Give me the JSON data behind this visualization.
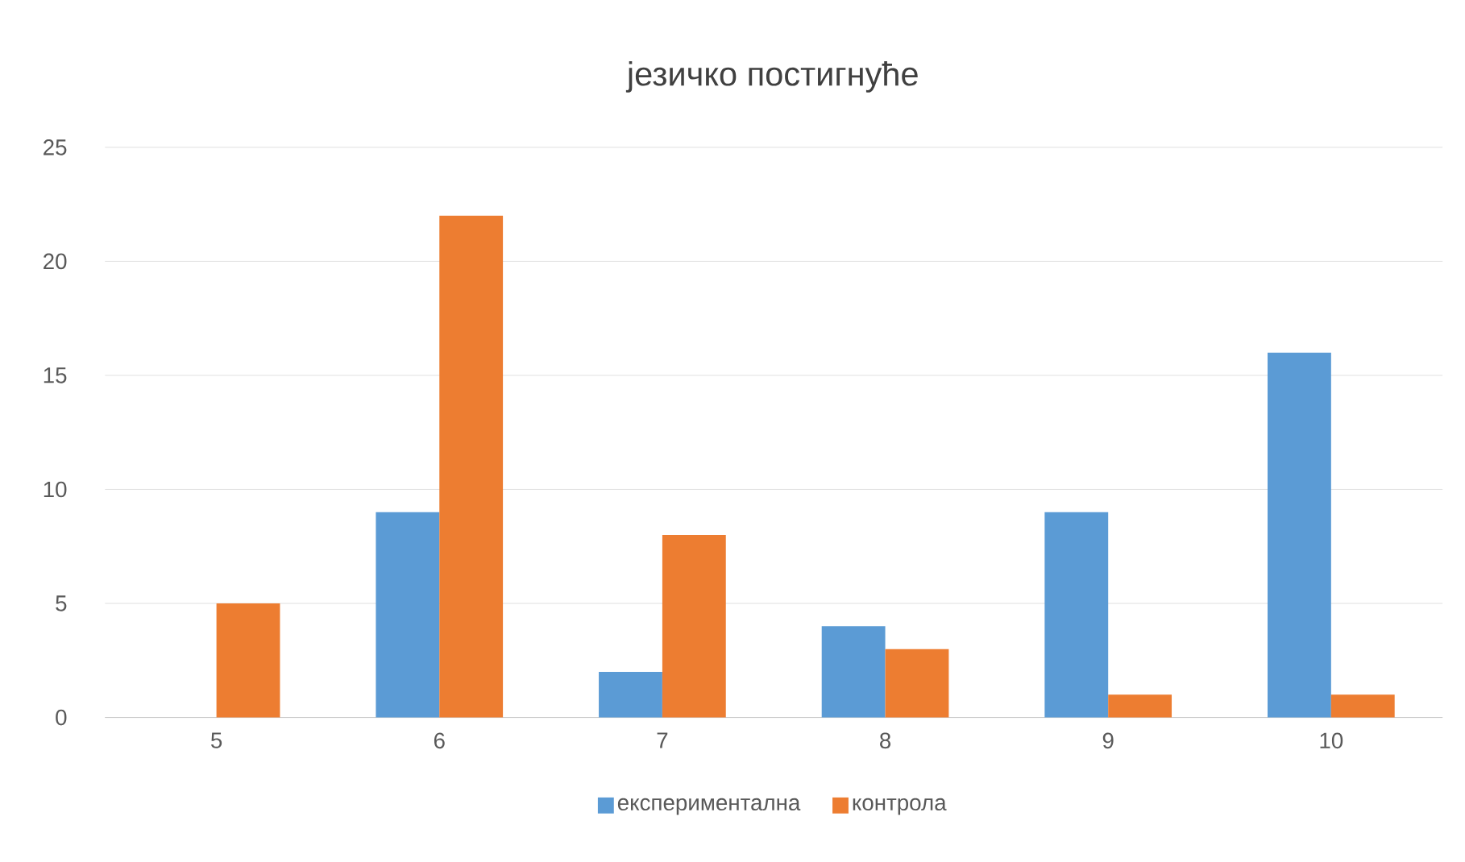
{
  "chart_data": {
    "type": "bar",
    "title": "језичко постигнуће",
    "categories": [
      "5",
      "6",
      "7",
      "8",
      "9",
      "10"
    ],
    "series": [
      {
        "name": "експериментална",
        "color": "#5b9bd5",
        "values": [
          0,
          9,
          2,
          4,
          9,
          16
        ]
      },
      {
        "name": "контрола",
        "color": "#ed7d31",
        "values": [
          5,
          22,
          8,
          3,
          1,
          1
        ]
      }
    ],
    "ylim": [
      0,
      25
    ],
    "yticks": [
      0,
      5,
      10,
      15,
      20,
      25
    ],
    "grid": "y",
    "legend": "bottom"
  }
}
